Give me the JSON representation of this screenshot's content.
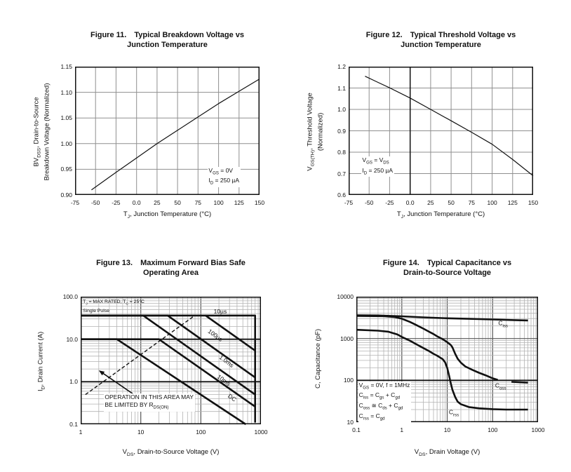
{
  "page": {
    "background": "#ffffff",
    "text_color": "#111111",
    "curve_color": "#111111"
  },
  "chart_data": [
    {
      "id": "fig11",
      "type": "line",
      "fig_label": "Figure 11.",
      "title1": "Typical Breakdown Voltage vs",
      "title2": "Junction Temperature",
      "x_axis": {
        "title": "T~J~, Junction Temperature (°C)",
        "min": -75,
        "max": 150,
        "scale": "linear",
        "ticks": [
          [
            "-75",
            -75
          ],
          [
            "-50",
            -50
          ],
          [
            "-25",
            -25
          ],
          [
            "0.0",
            0
          ],
          [
            "25",
            25
          ],
          [
            "50",
            50
          ],
          [
            "75",
            75
          ],
          [
            "100",
            100
          ],
          [
            "125",
            125
          ],
          [
            "150",
            150
          ]
        ]
      },
      "y_axis": {
        "title": [
          "BV~DSS~, Drain-to-Source",
          "Breakdown Voltage (Normalized)"
        ],
        "min": 0.9,
        "max": 1.15,
        "scale": "linear",
        "ticks": [
          [
            "1.15",
            1.15
          ],
          [
            "1.10",
            1.1
          ],
          [
            "1.05",
            1.05
          ],
          [
            "1.00",
            1.0
          ],
          [
            "0.95",
            0.95
          ],
          [
            "0.90",
            0.9
          ]
        ]
      },
      "grid": {
        "minor": "#bdbdbd",
        "major": "#8f8f8f",
        "major_w": 1,
        "bold_x": [],
        "bold_y": []
      },
      "series": [
        {
          "name": "breakdown-voltage-curve",
          "width": 1.2,
          "points": [
            [
              -55,
              0.91
            ],
            [
              -40,
              0.927
            ],
            [
              -25,
              0.944
            ],
            [
              0,
              0.972
            ],
            [
              25,
              1.0
            ],
            [
              50,
              1.026
            ],
            [
              75,
              1.052
            ],
            [
              100,
              1.078
            ],
            [
              125,
              1.102
            ],
            [
              150,
              1.126
            ]
          ]
        }
      ],
      "annotations": [
        {
          "lines": [
            "V~GS~ = 0V",
            "I~D~ = 250 µA"
          ],
          "fx": 0.72,
          "fy": 0.78,
          "bg": true,
          "small": false
        }
      ],
      "labels": []
    },
    {
      "id": "fig12",
      "type": "line",
      "fig_label": "Figure 12.",
      "title1": "Typical Threshold Voltage vs",
      "title2": "Junction Temperature",
      "x_axis": {
        "title": "T~J~, Junction Temperature (°C)",
        "min": -75,
        "max": 150,
        "scale": "linear",
        "ticks": [
          [
            "-75",
            -75
          ],
          [
            "-50",
            -50
          ],
          [
            "-25",
            -25
          ],
          [
            "0.0",
            0
          ],
          [
            "25",
            25
          ],
          [
            "50",
            50
          ],
          [
            "75",
            75
          ],
          [
            "100",
            100
          ],
          [
            "125",
            125
          ],
          [
            "150",
            150
          ]
        ]
      },
      "y_axis": {
        "title": [
          "V~GS(TH)~, Threshold Voltage",
          "(Normalized)"
        ],
        "min": 0.6,
        "max": 1.2,
        "scale": "linear",
        "ticks": [
          [
            "1.2",
            1.2
          ],
          [
            "1.1",
            1.1
          ],
          [
            "1.0",
            1.0
          ],
          [
            "0.9",
            0.9
          ],
          [
            "0.8",
            0.8
          ],
          [
            "0.7",
            0.7
          ],
          [
            "0.6",
            0.6
          ]
        ]
      },
      "grid": {
        "minor": "#bdbdbd",
        "major": "#8f8f8f",
        "major_w": 1,
        "bold_x": [
          0
        ],
        "bold_y": []
      },
      "series": [
        {
          "name": "threshold-voltage-curve",
          "width": 1.2,
          "points": [
            [
              -55,
              1.155
            ],
            [
              -40,
              1.128
            ],
            [
              -25,
              1.101
            ],
            [
              0,
              1.053
            ],
            [
              25,
              1.0
            ],
            [
              50,
              0.947
            ],
            [
              75,
              0.893
            ],
            [
              100,
              0.837
            ],
            [
              125,
              0.766
            ],
            [
              150,
              0.69
            ]
          ]
        }
      ],
      "annotations": [
        {
          "lines": [
            "V~GS~ = V~DS~",
            "I~D~ = 250 µA"
          ],
          "fx": 0.07,
          "fy": 0.7,
          "bg": true,
          "small": false
        }
      ],
      "labels": []
    },
    {
      "id": "fig13",
      "type": "line",
      "fig_label": "Figure 13.",
      "title1": "Maximum Forward Bias Safe",
      "title2": "Operating Area",
      "x_axis": {
        "title": "V~DS~, Drain-to-Source Voltage (V)",
        "min": 1,
        "max": 1000,
        "scale": "log",
        "ticks": [
          [
            "1",
            1
          ],
          [
            "10",
            10
          ],
          [
            "100",
            100
          ],
          [
            "1000",
            1000
          ]
        ]
      },
      "y_axis": {
        "title": [
          "I~D~, Drain Current (A)"
        ],
        "min": 0.1,
        "max": 100,
        "scale": "log",
        "ticks": [
          [
            "100.0",
            100
          ],
          [
            "10.0",
            10
          ],
          [
            "1.0",
            1
          ],
          [
            "0.1",
            0.1
          ]
        ]
      },
      "grid": {
        "minor": "#b3b3b3",
        "major": "#555555",
        "major_w": 1.2,
        "bold_x": [],
        "bold_y": [
          10,
          1
        ]
      },
      "series": [
        {
          "name": "soa-voltage-boundary",
          "width": 2.6,
          "points": [
            [
              120,
              36
            ],
            [
              800,
              36
            ],
            [
              800,
              0.11
            ]
          ]
        },
        {
          "name": "curve-10us",
          "width": 2.6,
          "points": [
            [
              1,
              36
            ],
            [
              120,
              36
            ],
            [
              800,
              5.4
            ]
          ]
        },
        {
          "name": "curve-100us",
          "width": 2.6,
          "points": [
            [
              1,
              36
            ],
            [
              28,
              36
            ],
            [
              800,
              1.26
            ]
          ]
        },
        {
          "name": "curve-1ms",
          "width": 2.6,
          "points": [
            [
              1,
              36
            ],
            [
              11,
              36
            ],
            [
              800,
              0.5
            ]
          ]
        },
        {
          "name": "curve-10ms",
          "width": 2.6,
          "points": [
            [
              1,
              10
            ],
            [
              20,
              10
            ],
            [
              800,
              0.26
            ]
          ]
        },
        {
          "name": "curve-dc",
          "width": 2.6,
          "points": [
            [
              1,
              10
            ],
            [
              4,
              10
            ],
            [
              560,
              0.1
            ]
          ]
        },
        {
          "name": "rdson-limit-line",
          "width": 1.4,
          "dash": "5,3",
          "points": [
            [
              1.2,
              0.5
            ],
            [
              75,
              34
            ]
          ]
        }
      ],
      "arrow": {
        "name": "rdson-area-arrow",
        "from": [
          9,
          0.43
        ],
        "to": [
          2.0,
          1.85
        ],
        "width": 1.6
      },
      "annotations": [
        {
          "lines": [
            "T~J~ = MAX RATED, T~C~ = 25°C",
            "Single Pulse"
          ],
          "fx": 0.012,
          "fy": 0.015,
          "bg": false,
          "small": true
        },
        {
          "lines": [
            "OPERATION IN THIS AREA MAY",
            "BE LIMITED BY R~DS(ON)~"
          ],
          "fx": 0.13,
          "fy": 0.76,
          "bg": true,
          "small": false
        }
      ],
      "labels": [
        {
          "name": "curve-label-10us",
          "text": "10µs",
          "x": 210,
          "y": 45,
          "rot": 0
        },
        {
          "name": "curve-label-100us",
          "text": "100µs",
          "x": 175,
          "y": 12.5,
          "rot": 36
        },
        {
          "name": "curve-label-1ms",
          "text": "1.0ms",
          "x": 265,
          "y": 3.1,
          "rot": 36
        },
        {
          "name": "curve-label-10ms",
          "text": "10ms",
          "x": 240,
          "y": 1.1,
          "rot": 36
        },
        {
          "name": "curve-label-dc",
          "text": "DC",
          "x": 330,
          "y": 0.42,
          "rot": 36
        }
      ]
    },
    {
      "id": "fig14",
      "type": "line",
      "fig_label": "Figure 14.",
      "title1": "Typical Capacitance vs",
      "title2": "Drain-to-Source Voltage",
      "x_axis": {
        "title": "V~DS~, Drain Voltage (V)",
        "min": 0.1,
        "max": 1000,
        "scale": "log",
        "ticks": [
          [
            "0.1",
            0.1
          ],
          [
            "1",
            1
          ],
          [
            "10",
            10
          ],
          [
            "100",
            100
          ],
          [
            "1000",
            1000
          ]
        ]
      },
      "y_axis": {
        "title": [
          "C, Capacitance (pF)"
        ],
        "min": 10,
        "max": 10000,
        "scale": "log",
        "ticks": [
          [
            "10000",
            10000
          ],
          [
            "1000",
            1000
          ],
          [
            "100",
            100
          ],
          [
            "10",
            10
          ]
        ]
      },
      "grid": {
        "minor": "#b3b3b3",
        "major": "#555555",
        "major_w": 1.2,
        "bold_x": [],
        "bold_y": [
          100
        ]
      },
      "series": [
        {
          "name": "curve-ciss",
          "width": 2.6,
          "points": [
            [
              0.1,
              3600
            ],
            [
              0.3,
              3550
            ],
            [
              1,
              3400
            ],
            [
              3,
              3200
            ],
            [
              10,
              3050
            ],
            [
              30,
              2950
            ],
            [
              100,
              2850
            ],
            [
              300,
              2760
            ],
            [
              600,
              2700
            ]
          ]
        },
        {
          "name": "curve-coss",
          "width": 2.6,
          "points": [
            [
              0.1,
              3480
            ],
            [
              0.4,
              3420
            ],
            [
              0.7,
              3250
            ],
            [
              1,
              2980
            ],
            [
              1.5,
              2500
            ],
            [
              2,
              2150
            ],
            [
              3,
              1720
            ],
            [
              4,
              1450
            ],
            [
              5,
              1280
            ],
            [
              6,
              1130
            ],
            [
              8,
              960
            ],
            [
              10,
              820
            ],
            [
              12,
              700
            ],
            [
              13,
              620
            ],
            [
              15,
              430
            ],
            [
              17,
              330
            ],
            [
              20,
              265
            ],
            [
              25,
              215
            ],
            [
              35,
              180
            ],
            [
              50,
              152
            ],
            [
              70,
              132
            ],
            [
              100,
              112
            ],
            [
              130,
              103
            ]
          ]
        },
        {
          "name": "curve-coss-tail",
          "width": 2.6,
          "points": [
            [
              260,
              92
            ],
            [
              600,
              88
            ]
          ]
        },
        {
          "name": "curve-crss",
          "width": 2.6,
          "points": [
            [
              0.1,
              1620
            ],
            [
              0.3,
              1540
            ],
            [
              0.5,
              1460
            ],
            [
              0.8,
              1250
            ],
            [
              1,
              1090
            ],
            [
              1.5,
              890
            ],
            [
              2,
              750
            ],
            [
              3,
              590
            ],
            [
              4,
              500
            ],
            [
              5,
              430
            ],
            [
              6,
              390
            ],
            [
              8,
              320
            ],
            [
              9,
              270
            ],
            [
              10,
              200
            ],
            [
              11,
              130
            ],
            [
              12,
              85
            ],
            [
              13,
              60
            ],
            [
              15,
              40
            ],
            [
              17,
              31
            ],
            [
              20,
              27
            ],
            [
              30,
              23
            ],
            [
              50,
              21.5
            ],
            [
              100,
              20.5
            ],
            [
              200,
              20
            ],
            [
              600,
              20
            ]
          ]
        }
      ],
      "annotations": [
        {
          "lines": [
            "V~GS~ = 0V, f = 1MHz",
            "C~iss~ = C~gs~ + C~gd~",
            "C~oss~ ≅ C~ds~ + C~gd~",
            "C~rss~ = C~gd~"
          ],
          "fx": 0.01,
          "fy": 0.675,
          "bg": true,
          "small": false
        }
      ],
      "labels": [
        {
          "name": "curve-label-ciss",
          "text": "C~iss~",
          "x": 170,
          "y": 2200,
          "rot": 0
        },
        {
          "name": "curve-label-coss",
          "text": "C~oss~",
          "x": 150,
          "y": 72,
          "rot": 0
        },
        {
          "name": "curve-label-crss",
          "text": "C~rss~",
          "x": 14,
          "y": 16.5,
          "rot": 0
        }
      ]
    }
  ]
}
